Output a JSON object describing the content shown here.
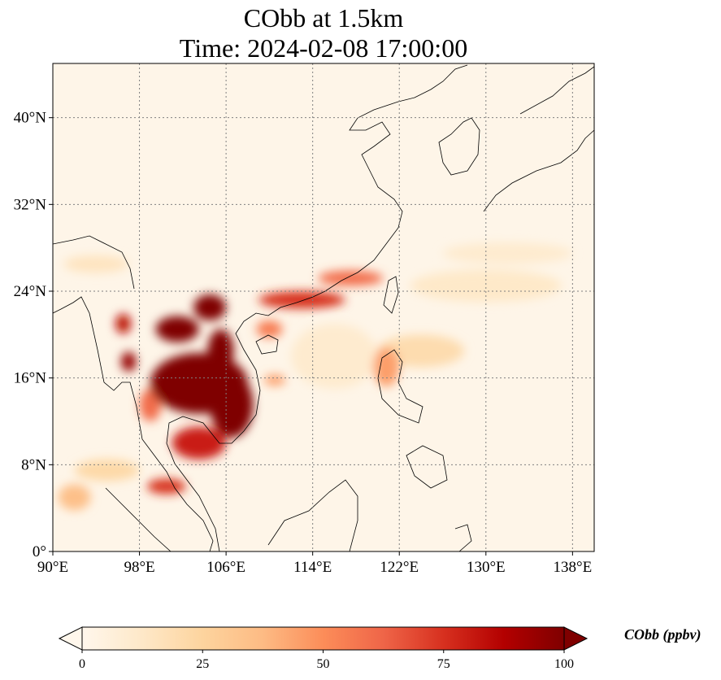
{
  "title": {
    "line1": "CObb at 1.5km",
    "line2": "Time: 2024-02-08 17:00:00"
  },
  "map": {
    "projection": "PlateCarree",
    "lon_range": [
      90,
      140
    ],
    "lat_range": [
      0,
      45
    ],
    "gridlines": {
      "style": "dotted",
      "color": "#808080"
    },
    "lon_ticks": [
      {
        "value": 90,
        "label": "90°E"
      },
      {
        "value": 98,
        "label": "98°E"
      },
      {
        "value": 106,
        "label": "106°E"
      },
      {
        "value": 114,
        "label": "114°E"
      },
      {
        "value": 122,
        "label": "122°E"
      },
      {
        "value": 130,
        "label": "130°E"
      },
      {
        "value": 138,
        "label": "138°E"
      }
    ],
    "lat_ticks": [
      {
        "value": 0,
        "label": "0°"
      },
      {
        "value": 8,
        "label": "8°N"
      },
      {
        "value": 16,
        "label": "16°N"
      },
      {
        "value": 24,
        "label": "24°N"
      },
      {
        "value": 32,
        "label": "32°N"
      },
      {
        "value": 40,
        "label": "40°N"
      }
    ],
    "background_color": "#fef5e8",
    "concentration_blobs": [
      {
        "lon": 103.5,
        "lat": 15.5,
        "rlon": 4.5,
        "rlat": 2.8,
        "value": 100
      },
      {
        "lon": 106.5,
        "lat": 13.5,
        "rlon": 2.0,
        "rlat": 3.0,
        "value": 100
      },
      {
        "lon": 101.5,
        "lat": 20.5,
        "rlon": 2.0,
        "rlat": 1.2,
        "value": 100
      },
      {
        "lon": 104.5,
        "lat": 22.5,
        "rlon": 1.5,
        "rlat": 1.2,
        "value": 100
      },
      {
        "lon": 105.5,
        "lat": 18.5,
        "rlon": 1.2,
        "rlat": 2.0,
        "value": 100
      },
      {
        "lon": 97.0,
        "lat": 17.5,
        "rlon": 0.7,
        "rlat": 0.9,
        "value": 95
      },
      {
        "lon": 96.5,
        "lat": 21.0,
        "rlon": 0.7,
        "rlat": 0.9,
        "value": 85
      },
      {
        "lon": 103.5,
        "lat": 10.0,
        "rlon": 2.5,
        "rlat": 1.5,
        "value": 80
      },
      {
        "lon": 100.5,
        "lat": 6.0,
        "rlon": 1.8,
        "rlat": 0.7,
        "value": 75
      },
      {
        "lon": 99.0,
        "lat": 13.5,
        "rlon": 1.0,
        "rlat": 1.5,
        "value": 60
      },
      {
        "lon": 113.0,
        "lat": 23.2,
        "rlon": 4.0,
        "rlat": 0.8,
        "value": 75
      },
      {
        "lon": 117.5,
        "lat": 25.2,
        "rlon": 3.0,
        "rlat": 0.7,
        "value": 60
      },
      {
        "lon": 110.0,
        "lat": 20.5,
        "rlon": 1.2,
        "rlat": 0.8,
        "value": 55
      },
      {
        "lon": 110.5,
        "lat": 15.8,
        "rlon": 1.0,
        "rlat": 0.5,
        "value": 45
      },
      {
        "lon": 120.8,
        "lat": 17.0,
        "rlon": 1.2,
        "rlat": 1.8,
        "value": 45
      },
      {
        "lon": 92.0,
        "lat": 5.0,
        "rlon": 1.5,
        "rlat": 1.2,
        "value": 35
      },
      {
        "lon": 95.0,
        "lat": 7.5,
        "rlon": 3.0,
        "rlat": 1.0,
        "value": 22
      },
      {
        "lon": 124.0,
        "lat": 18.5,
        "rlon": 4.0,
        "rlat": 1.5,
        "value": 20
      },
      {
        "lon": 130.0,
        "lat": 24.5,
        "rlon": 7.0,
        "rlat": 1.5,
        "value": 12
      },
      {
        "lon": 132.0,
        "lat": 27.5,
        "rlon": 6.0,
        "rlat": 1.0,
        "value": 10
      },
      {
        "lon": 94.0,
        "lat": 26.5,
        "rlon": 3.0,
        "rlat": 0.8,
        "value": 15
      },
      {
        "lon": 116.0,
        "lat": 18.0,
        "rlon": 4.0,
        "rlat": 3.0,
        "value": 10
      }
    ]
  },
  "colorbar": {
    "title": "CObb (ppbv)",
    "min": 0,
    "max": 100,
    "extend": "both",
    "cmap": "OrRd",
    "ticks": [
      {
        "value": 0,
        "label": "0"
      },
      {
        "value": 25,
        "label": "25"
      },
      {
        "value": 50,
        "label": "50"
      },
      {
        "value": 75,
        "label": "75"
      },
      {
        "value": 100,
        "label": "100"
      }
    ],
    "stops": [
      {
        "value": 0,
        "color": "#fff7ec"
      },
      {
        "value": 12.5,
        "color": "#fee8c8"
      },
      {
        "value": 25,
        "color": "#fdd49e"
      },
      {
        "value": 37.5,
        "color": "#fdbb84"
      },
      {
        "value": 50,
        "color": "#fc8d59"
      },
      {
        "value": 62.5,
        "color": "#ef6548"
      },
      {
        "value": 75,
        "color": "#d7301f"
      },
      {
        "value": 87.5,
        "color": "#b30000"
      },
      {
        "value": 100,
        "color": "#7f0000"
      }
    ]
  }
}
